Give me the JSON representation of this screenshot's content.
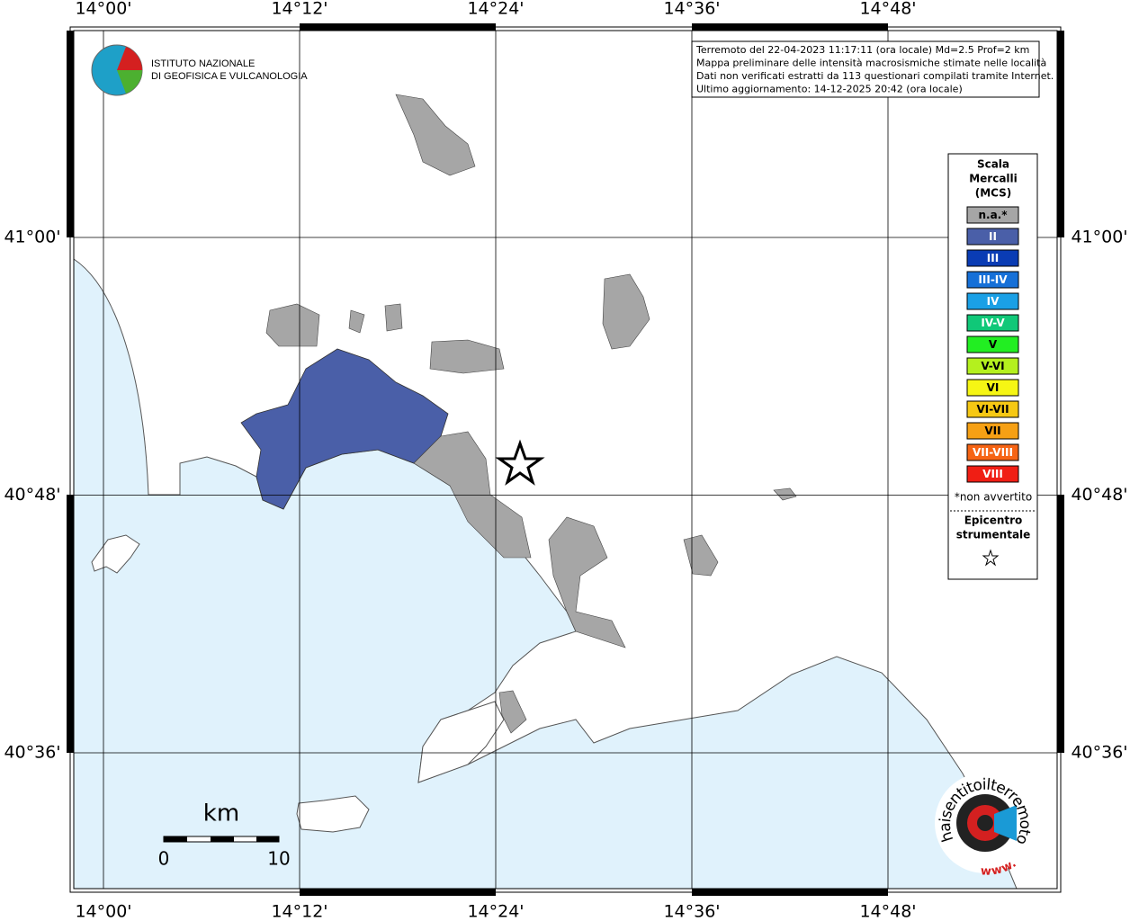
{
  "map": {
    "lon_labels": [
      "14°00'",
      "14°12'",
      "14°24'",
      "14°36'",
      "14°48'"
    ],
    "lat_labels": [
      "41°00'",
      "40°48'",
      "40°36'"
    ],
    "info_lines": [
      "Terremoto del 22-04-2023 11:17:11 (ora locale) Md=2.5 Prof=2 km",
      "Mappa preliminare delle intensità macrosismiche stimate nelle località",
      "Dati non verificati estratti da 113 questionari compilati tramite Internet.",
      "Ultimo aggiornamento: 14-12-2025 20:42 (ora locale)"
    ],
    "institute": [
      "ISTITUTO NAZIONALE",
      "DI GEOFISICA E VULCANOLOGIA"
    ],
    "legend": {
      "title": [
        "Scala",
        "Mercalli",
        "(MCS)"
      ],
      "classes": [
        {
          "label": "n.a.*",
          "color": "#a6a6a6"
        },
        {
          "label": "II",
          "color": "#4a5fa8"
        },
        {
          "label": "III",
          "color": "#0a3cb4"
        },
        {
          "label": "III-IV",
          "color": "#1670d8"
        },
        {
          "label": "IV",
          "color": "#1aa0e6"
        },
        {
          "label": "IV-V",
          "color": "#10c878"
        },
        {
          "label": "V",
          "color": "#22ee22"
        },
        {
          "label": "V-VI",
          "color": "#b4f01e"
        },
        {
          "label": "VI",
          "color": "#f6f614"
        },
        {
          "label": "VI-VII",
          "color": "#f6c814"
        },
        {
          "label": "VII",
          "color": "#f6a014"
        },
        {
          "label": "VII-VIII",
          "color": "#f66414"
        },
        {
          "label": "VIII",
          "color": "#f01e14"
        }
      ],
      "note": "*non avvertito",
      "epicenter": [
        "Epicentro",
        "strumentale"
      ]
    },
    "scale": {
      "unit": "km",
      "labels": [
        "0",
        "10"
      ]
    },
    "site_logo": [
      "haisentitoilterremoto.it",
      "www."
    ]
  }
}
